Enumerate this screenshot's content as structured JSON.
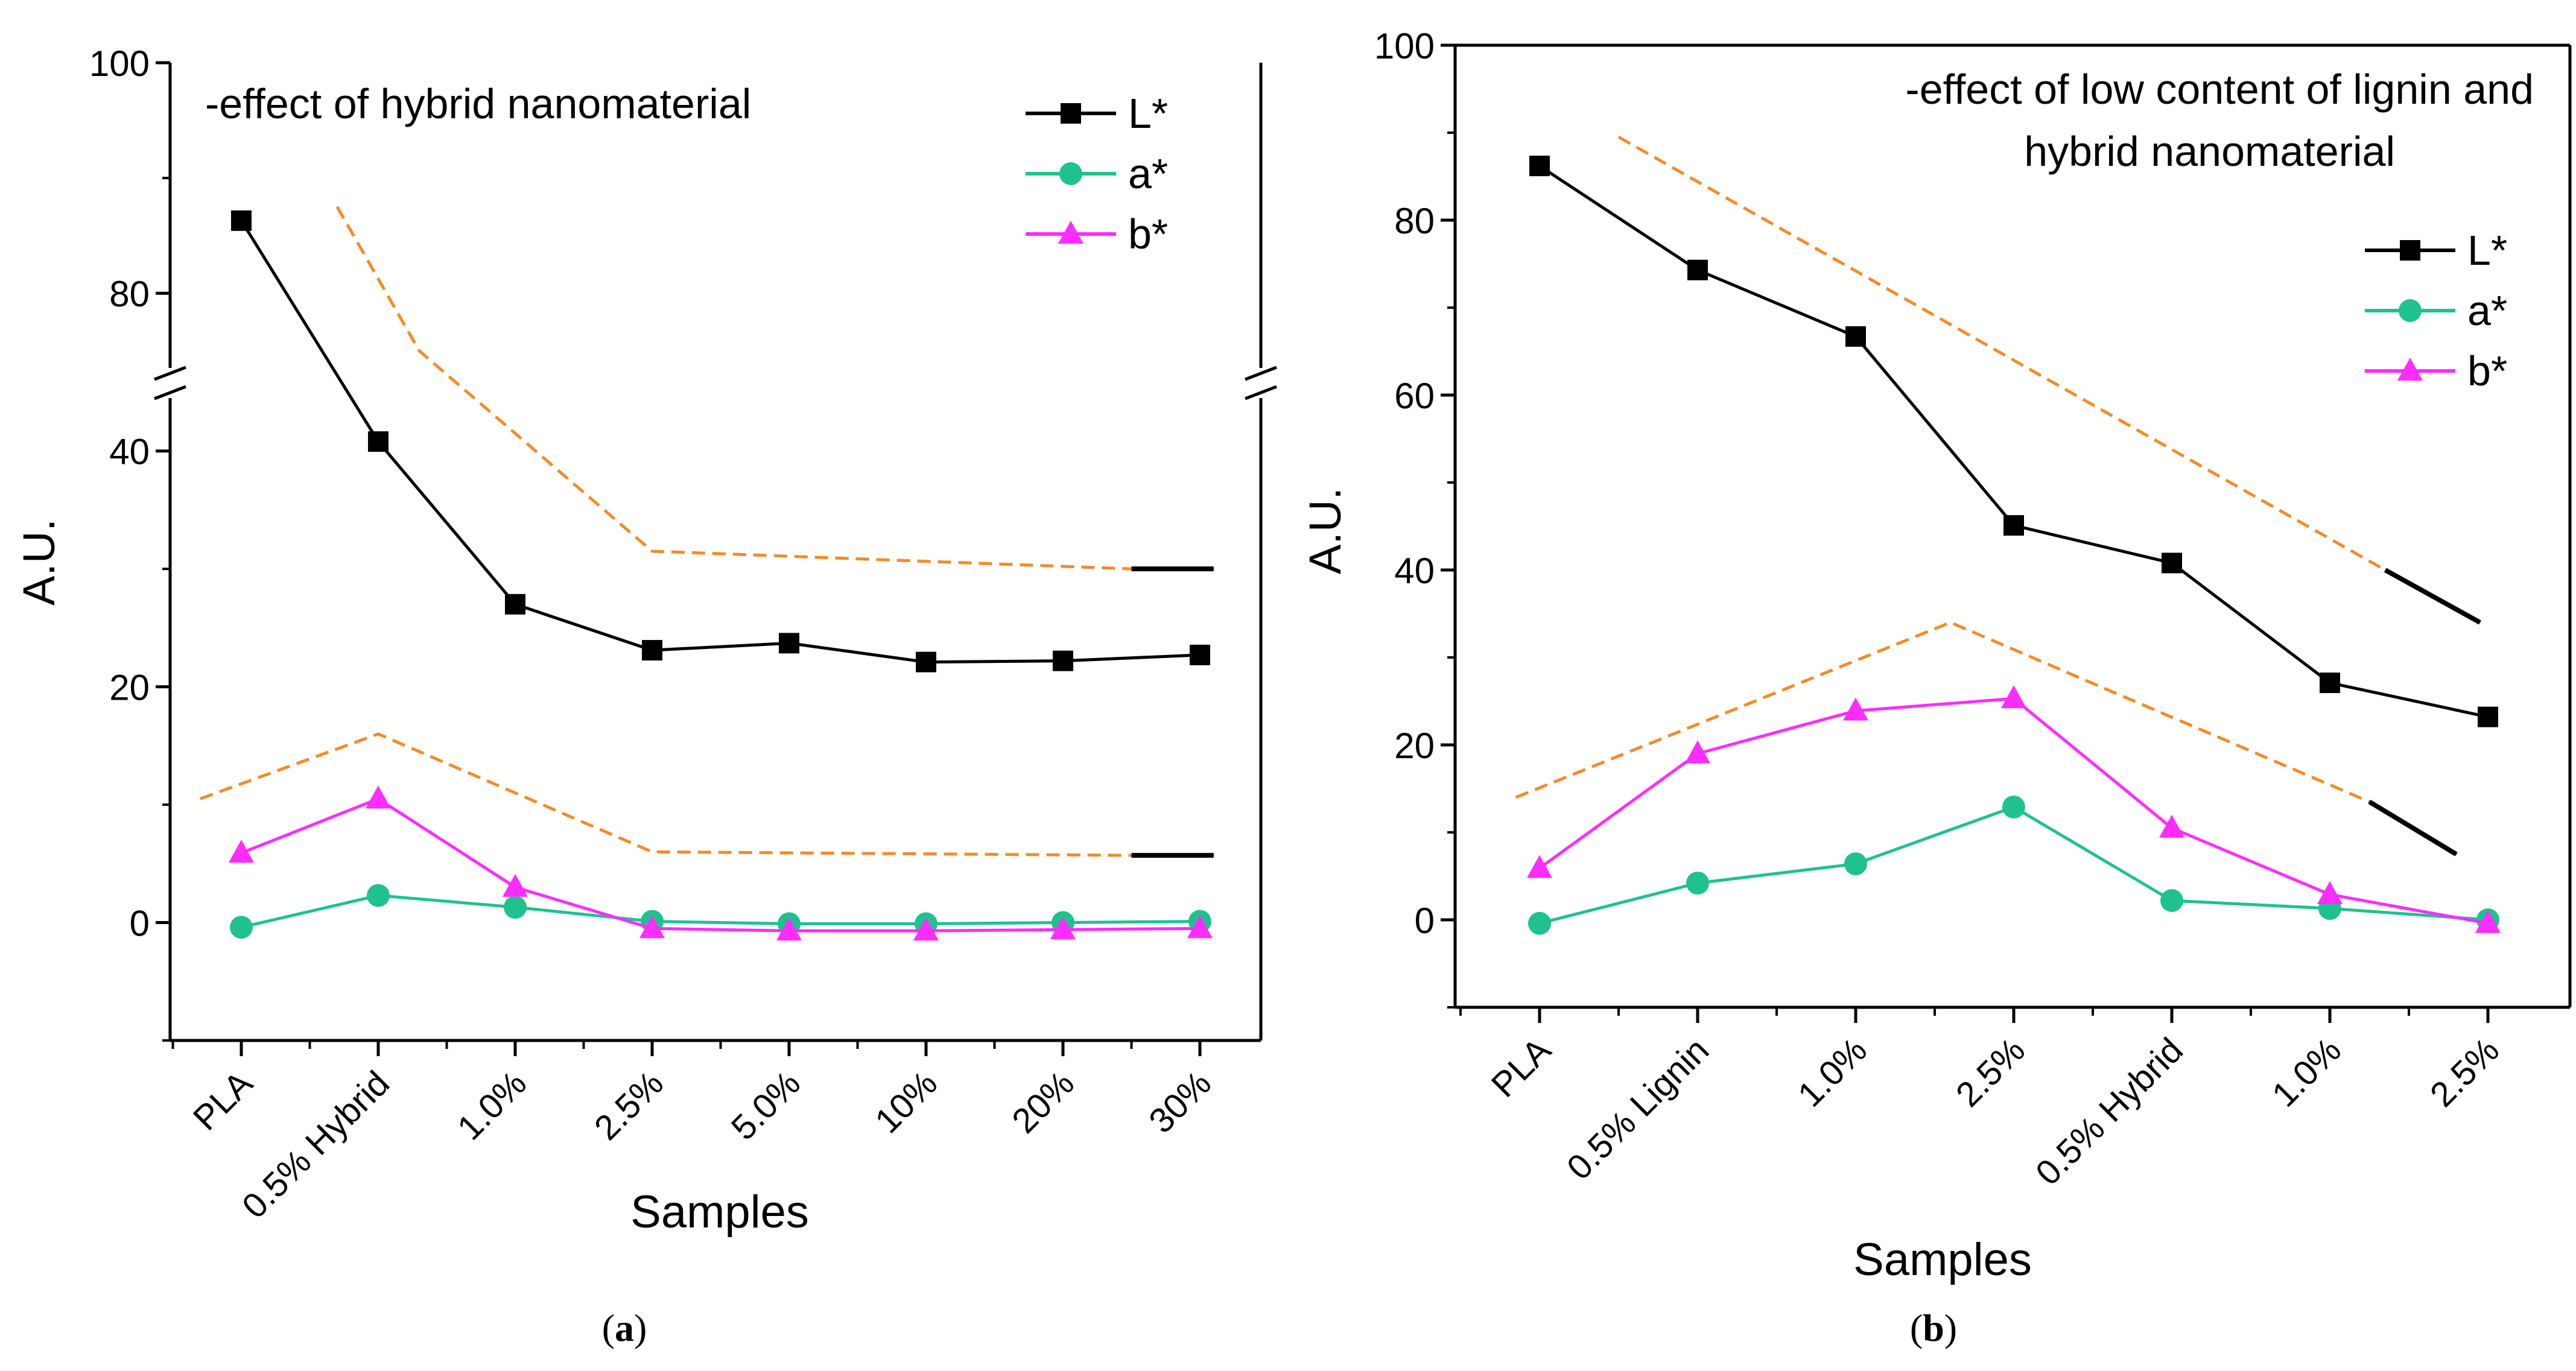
{
  "chart_data": [
    {
      "panel": "a",
      "type": "line",
      "caption_letter": "a",
      "annotation": "-effect of hybrid nanomaterial",
      "xlabel": "Samples",
      "ylabel": "A.U.",
      "categories": [
        "PLA",
        "0.5% Hybrid",
        "1.0%",
        "2.5%",
        "5.0%",
        "10%",
        "20%",
        "30%"
      ],
      "axis_break": true,
      "ylim_lower": [
        -10,
        45
      ],
      "ylim_upper": [
        73,
        100
      ],
      "yticks_lower": [
        0,
        20,
        40
      ],
      "yticks_upper": [
        80,
        100
      ],
      "series": [
        {
          "name": "L*",
          "color": "#000000",
          "marker": "square",
          "values": [
            86.3,
            40.8,
            27.0,
            23.1,
            23.7,
            22.1,
            22.2,
            22.7
          ]
        },
        {
          "name": "a*",
          "color": "#1fc28f",
          "marker": "circle",
          "values": [
            -0.4,
            2.3,
            1.3,
            0.1,
            -0.1,
            -0.1,
            0.0,
            0.1
          ]
        },
        {
          "name": "b*",
          "color": "#ff2cff",
          "marker": "triangle",
          "values": [
            5.9,
            10.5,
            3.0,
            -0.5,
            -0.7,
            -0.7,
            -0.6,
            -0.5
          ]
        }
      ],
      "trend_color": "#f28c28",
      "trends": [
        {
          "points": [
            [
              0.7,
              87.5
            ],
            [
              1.3,
              75.0
            ],
            [
              3.0,
              31.5
            ],
            [
              6.5,
              30.0
            ]
          ],
          "arrow": [
            [
              6.5,
              30.0
            ],
            [
              7.1,
              30.0
            ]
          ]
        },
        {
          "points": [
            [
              -0.3,
              10.5
            ],
            [
              1.0,
              16.0
            ],
            [
              3.0,
              6.0
            ],
            [
              6.5,
              5.7
            ]
          ],
          "arrow": [
            [
              6.5,
              5.7
            ],
            [
              7.1,
              5.7
            ]
          ]
        }
      ]
    },
    {
      "panel": "b",
      "type": "line",
      "caption_letter": "b",
      "annotation": [
        "-effect of low content of lignin and",
        "hybrid nanomaterial"
      ],
      "xlabel": "Samples",
      "ylabel": "A.U.",
      "categories": [
        "PLA",
        "0.5% Lignin",
        "1.0%",
        "2.5%",
        "0.5% Hybrid",
        "1.0%",
        "2.5%"
      ],
      "ylim": [
        -10,
        100
      ],
      "yticks": [
        0,
        20,
        40,
        60,
        80,
        100
      ],
      "series": [
        {
          "name": "L*",
          "color": "#000000",
          "marker": "square",
          "values": [
            86.2,
            74.3,
            66.7,
            45.1,
            40.8,
            27.1,
            23.2
          ]
        },
        {
          "name": "a*",
          "color": "#1fc28f",
          "marker": "circle",
          "values": [
            -0.4,
            4.2,
            6.4,
            12.9,
            2.2,
            1.3,
            0.0
          ]
        },
        {
          "name": "b*",
          "color": "#ff2cff",
          "marker": "triangle",
          "values": [
            5.9,
            19.0,
            23.9,
            25.3,
            10.5,
            2.9,
            -0.4
          ]
        }
      ],
      "trend_color": "#f28c28",
      "trends": [
        {
          "points": [
            [
              0.5,
              89.5
            ],
            [
              5.35,
              40.0
            ]
          ],
          "arrow": [
            [
              5.35,
              40.0
            ],
            [
              5.95,
              34.0
            ]
          ]
        },
        {
          "points": [
            [
              -0.15,
              14.0
            ],
            [
              2.6,
              34.0
            ],
            [
              5.25,
              13.5
            ]
          ],
          "arrow": [
            [
              5.25,
              13.5
            ],
            [
              5.8,
              7.5
            ]
          ]
        }
      ]
    }
  ]
}
